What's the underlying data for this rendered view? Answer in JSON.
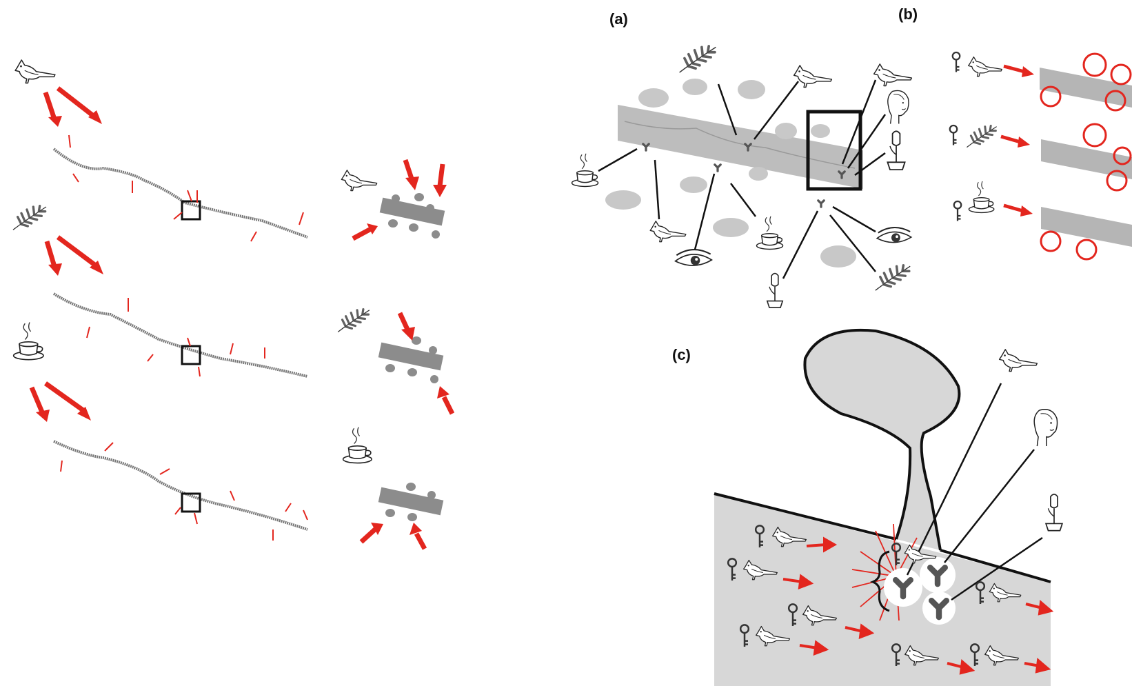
{
  "labels": {
    "a": "(a)",
    "b": "(b)",
    "c": "(c)"
  },
  "colors": {
    "arrow_red": "#e3261e",
    "dendrite_gray": "#8c8c8c",
    "spine_light_gray": "#bdbdbd",
    "background_gray": "#d7d7d7",
    "outline_black": "#111111"
  },
  "icons": [
    "bird-icon",
    "plant-leaf-icon",
    "coffee-cup-icon",
    "face-icon",
    "eye-icon",
    "tulip-icon",
    "key-icon",
    "receptor-icon"
  ]
}
